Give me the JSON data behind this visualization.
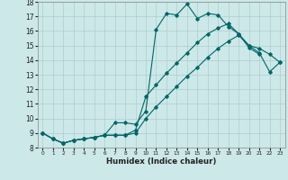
{
  "xlabel": "Humidex (Indice chaleur)",
  "background_color": "#cce8e8",
  "grid_color": "#b0cccc",
  "line_color": "#006666",
  "xlim": [
    -0.5,
    23.5
  ],
  "ylim": [
    8,
    18
  ],
  "xticks": [
    0,
    1,
    2,
    3,
    4,
    5,
    6,
    7,
    8,
    9,
    10,
    11,
    12,
    13,
    14,
    15,
    16,
    17,
    18,
    19,
    20,
    21,
    22,
    23
  ],
  "yticks": [
    8,
    9,
    10,
    11,
    12,
    13,
    14,
    15,
    16,
    17,
    18
  ],
  "line1_x": [
    0,
    1,
    2,
    3,
    4,
    5,
    6,
    7,
    8,
    9,
    10,
    11,
    12,
    13,
    14,
    15,
    16,
    17,
    18,
    19,
    20,
    21
  ],
  "line1_y": [
    9.0,
    8.6,
    8.3,
    8.5,
    8.6,
    8.7,
    8.85,
    9.7,
    9.7,
    9.6,
    10.5,
    16.1,
    17.2,
    17.1,
    17.85,
    16.85,
    17.2,
    17.1,
    16.3,
    15.8,
    14.85,
    14.4
  ],
  "line2_x": [
    0,
    1,
    2,
    3,
    4,
    5,
    6,
    7,
    8,
    9,
    10,
    11,
    12,
    13,
    14,
    15,
    16,
    17,
    18,
    19,
    20,
    21,
    22,
    23
  ],
  "line2_y": [
    9.0,
    8.6,
    8.3,
    8.5,
    8.6,
    8.7,
    8.85,
    8.85,
    8.85,
    9.2,
    11.5,
    12.3,
    13.1,
    13.8,
    14.5,
    15.2,
    15.8,
    16.2,
    16.5,
    15.8,
    15.0,
    14.8,
    14.4,
    13.85
  ],
  "line3_x": [
    0,
    1,
    2,
    3,
    4,
    5,
    6,
    7,
    8,
    9,
    10,
    11,
    12,
    13,
    14,
    15,
    16,
    17,
    18,
    19,
    20,
    21,
    22,
    23
  ],
  "line3_y": [
    9.0,
    8.6,
    8.3,
    8.5,
    8.6,
    8.7,
    8.85,
    8.85,
    8.85,
    9.0,
    10.0,
    10.8,
    11.5,
    12.2,
    12.9,
    13.5,
    14.2,
    14.8,
    15.3,
    15.7,
    15.0,
    14.5,
    13.2,
    13.85
  ]
}
